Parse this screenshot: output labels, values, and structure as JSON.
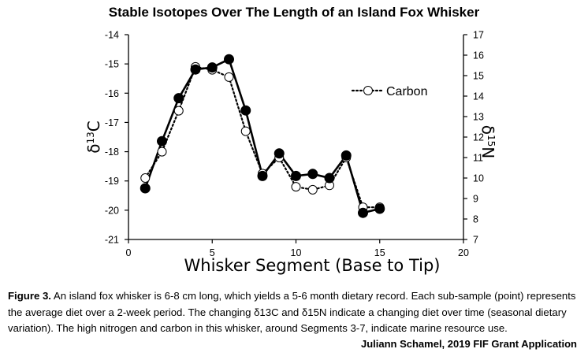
{
  "chart_data": {
    "type": "line",
    "title": "Stable Isotopes Over The Length of an Island Fox Whisker",
    "xlabel": "Whisker Segment (Base to Tip)",
    "ylabel_left": "δ13C",
    "ylabel_right": "δ15N",
    "xlim": [
      0,
      20
    ],
    "ylim_left": [
      -21,
      -14
    ],
    "ylim_right": [
      7,
      17
    ],
    "x_ticks": [
      "0",
      "5",
      "10",
      "15",
      "20"
    ],
    "y_left_ticks": [
      "-14",
      "-15",
      "-16",
      "-17",
      "-18",
      "-19",
      "-20",
      "-21"
    ],
    "y_right_ticks": [
      "17",
      "16",
      "15",
      "14",
      "13",
      "12",
      "11",
      "10",
      "9",
      "8",
      "7"
    ],
    "grid": false,
    "legend_position": "top-right",
    "series": [
      {
        "name": "Carbon",
        "axis": "left",
        "style": "dotted, open circles",
        "x": [
          1,
          2,
          3,
          4,
          5,
          6,
          7,
          8,
          9,
          10,
          11,
          12,
          13,
          14,
          15
        ],
        "values": [
          -18.9,
          -18.0,
          -16.6,
          -15.1,
          -15.2,
          -15.45,
          -17.3,
          -18.75,
          -18.2,
          -19.2,
          -19.3,
          -19.15,
          -18.2,
          -19.9,
          -19.9
        ]
      },
      {
        "name": "",
        "axis": "right",
        "style": "solid, filled circles",
        "x": [
          1,
          2,
          3,
          4,
          5,
          6,
          7,
          8,
          9,
          10,
          11,
          12,
          13,
          14,
          15
        ],
        "values": [
          9.5,
          11.8,
          13.9,
          15.3,
          15.4,
          15.8,
          13.3,
          10.1,
          11.2,
          10.1,
          10.2,
          10.0,
          11.1,
          8.3,
          8.5
        ]
      }
    ],
    "colors": {
      "line": "#000000",
      "marker_open_fill": "#ffffff",
      "marker_filled": "#000000"
    }
  },
  "caption": {
    "label": "Figure 3.",
    "text": "An island fox whisker is 6-8 cm long, which yields a 5-6 month dietary record. Each sub-sample (point) represents the average diet over a 2-week period. The changing δ13C and δ15N indicate a changing diet over time (seasonal dietary variation). The high nitrogen and carbon in this whisker, around Segments 3-7, indicate marine resource use."
  },
  "credit": "Juliann Schamel, 2019 FIF Grant Application"
}
